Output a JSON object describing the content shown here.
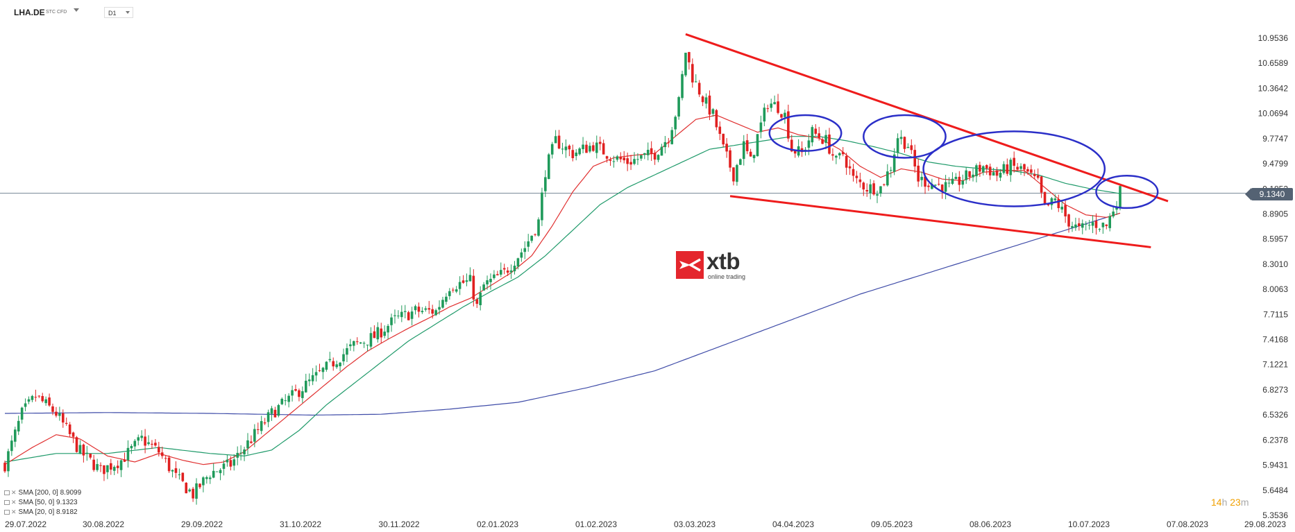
{
  "toolbar": {
    "symbol": "LHA.DE",
    "symbol_type": "STC CFD",
    "timeframe": "D1"
  },
  "price_tag": "9.1340",
  "countdown": {
    "h_val": "14",
    "h_unit": "h",
    "m_val": "23",
    "m_unit": "m"
  },
  "logo": {
    "text": "xtb",
    "subtitle": "online trading"
  },
  "legend": [
    {
      "label": "SMA [200, 0] 8.9099",
      "color": "#3f4ca8"
    },
    {
      "label": "SMA [50, 0] 9.1323",
      "color": "#1f9a6a"
    },
    {
      "label": "SMA [20, 0] 8.9182",
      "color": "#e02f2f"
    }
  ],
  "chart_data": {
    "type": "candlestick",
    "up_color": "#1f9a5a",
    "down_color": "#e02020",
    "ylim": [
      5.3536,
      11.15
    ],
    "y_ticks": [
      "10.9536",
      "10.6589",
      "10.3642",
      "10.0694",
      "9.7747",
      "9.4799",
      "9.1852",
      "8.8905",
      "8.5957",
      "8.3010",
      "8.0063",
      "7.7115",
      "7.4168",
      "7.1221",
      "6.8273",
      "6.5326",
      "6.2378",
      "5.9431",
      "5.6484",
      "5.3536"
    ],
    "x_ticks": [
      "29.07.2022",
      "30.08.2022",
      "29.09.2022",
      "31.10.2022",
      "30.11.2022",
      "02.01.2023",
      "01.02.2023",
      "03.03.2023",
      "04.04.2023",
      "09.05.2023",
      "08.06.2023",
      "10.07.2023",
      "07.08.2023",
      "29.08.2023"
    ],
    "current_price": 9.134,
    "anchors": [
      [
        0,
        5.95
      ],
      [
        5,
        6.55
      ],
      [
        9,
        6.75
      ],
      [
        15,
        6.55
      ],
      [
        22,
        6.1
      ],
      [
        28,
        5.88
      ],
      [
        34,
        6.0
      ],
      [
        40,
        6.25
      ],
      [
        45,
        6.1
      ],
      [
        50,
        5.8
      ],
      [
        55,
        5.6
      ],
      [
        60,
        5.85
      ],
      [
        66,
        5.95
      ],
      [
        72,
        6.25
      ],
      [
        78,
        6.55
      ],
      [
        84,
        6.75
      ],
      [
        90,
        6.95
      ],
      [
        96,
        7.15
      ],
      [
        102,
        7.35
      ],
      [
        108,
        7.45
      ],
      [
        114,
        7.65
      ],
      [
        120,
        7.75
      ],
      [
        126,
        7.75
      ],
      [
        130,
        8.05
      ],
      [
        136,
        8.1
      ],
      [
        138,
        7.8
      ],
      [
        140,
        8.05
      ],
      [
        146,
        8.2
      ],
      [
        152,
        8.5
      ],
      [
        156,
        8.8
      ],
      [
        158,
        9.4
      ],
      [
        161,
        9.75
      ],
      [
        166,
        9.6
      ],
      [
        172,
        9.7
      ],
      [
        178,
        9.55
      ],
      [
        182,
        9.5
      ],
      [
        186,
        9.55
      ],
      [
        190,
        9.6
      ],
      [
        194,
        9.8
      ],
      [
        197,
        10.2
      ],
      [
        199,
        10.8
      ],
      [
        201,
        10.5
      ],
      [
        204,
        10.25
      ],
      [
        207,
        10.05
      ],
      [
        210,
        9.65
      ],
      [
        213,
        9.35
      ],
      [
        216,
        9.7
      ],
      [
        218,
        9.5
      ],
      [
        220,
        9.8
      ],
      [
        223,
        10.2
      ],
      [
        226,
        10.15
      ],
      [
        228,
        10.05
      ],
      [
        230,
        9.65
      ],
      [
        233,
        9.6
      ],
      [
        236,
        9.85
      ],
      [
        240,
        9.75
      ],
      [
        243,
        9.5
      ],
      [
        245,
        9.6
      ],
      [
        248,
        9.3
      ],
      [
        252,
        9.2
      ],
      [
        256,
        9.2
      ],
      [
        259,
        9.45
      ],
      [
        261,
        9.8
      ],
      [
        264,
        9.7
      ],
      [
        267,
        9.3
      ],
      [
        271,
        9.25
      ],
      [
        276,
        9.2
      ],
      [
        282,
        9.35
      ],
      [
        286,
        9.45
      ],
      [
        290,
        9.35
      ],
      [
        294,
        9.45
      ],
      [
        298,
        9.4
      ],
      [
        302,
        9.25
      ],
      [
        304,
        8.95
      ],
      [
        307,
        9.05
      ],
      [
        311,
        8.8
      ],
      [
        314,
        8.7
      ],
      [
        318,
        8.78
      ],
      [
        322,
        8.75
      ],
      [
        324,
        8.95
      ],
      [
        326,
        9.15
      ]
    ],
    "sma20_path": [
      [
        0,
        5.95
      ],
      [
        8,
        6.15
      ],
      [
        15,
        6.3
      ],
      [
        22,
        6.25
      ],
      [
        30,
        6.05
      ],
      [
        38,
        5.98
      ],
      [
        45,
        6.08
      ],
      [
        52,
        6.0
      ],
      [
        58,
        5.95
      ],
      [
        64,
        5.98
      ],
      [
        70,
        6.1
      ],
      [
        76,
        6.3
      ],
      [
        82,
        6.5
      ],
      [
        88,
        6.7
      ],
      [
        94,
        6.9
      ],
      [
        100,
        7.1
      ],
      [
        106,
        7.28
      ],
      [
        112,
        7.42
      ],
      [
        118,
        7.55
      ],
      [
        124,
        7.67
      ],
      [
        130,
        7.8
      ],
      [
        136,
        7.9
      ],
      [
        142,
        8.05
      ],
      [
        148,
        8.2
      ],
      [
        154,
        8.4
      ],
      [
        160,
        8.75
      ],
      [
        166,
        9.15
      ],
      [
        172,
        9.45
      ],
      [
        178,
        9.55
      ],
      [
        184,
        9.58
      ],
      [
        190,
        9.6
      ],
      [
        196,
        9.8
      ],
      [
        202,
        10.0
      ],
      [
        208,
        10.05
      ],
      [
        214,
        9.95
      ],
      [
        220,
        9.85
      ],
      [
        226,
        9.9
      ],
      [
        232,
        9.82
      ],
      [
        238,
        9.78
      ],
      [
        244,
        9.65
      ],
      [
        250,
        9.45
      ],
      [
        256,
        9.32
      ],
      [
        262,
        9.42
      ],
      [
        268,
        9.38
      ],
      [
        274,
        9.3
      ],
      [
        280,
        9.28
      ],
      [
        286,
        9.38
      ],
      [
        292,
        9.4
      ],
      [
        298,
        9.4
      ],
      [
        304,
        9.2
      ],
      [
        310,
        9.0
      ],
      [
        316,
        8.88
      ],
      [
        322,
        8.85
      ],
      [
        326,
        8.9
      ]
    ],
    "sma50_path": [
      [
        0,
        5.98
      ],
      [
        15,
        6.08
      ],
      [
        30,
        6.08
      ],
      [
        45,
        6.15
      ],
      [
        60,
        6.08
      ],
      [
        70,
        6.05
      ],
      [
        78,
        6.12
      ],
      [
        86,
        6.35
      ],
      [
        94,
        6.65
      ],
      [
        102,
        6.9
      ],
      [
        110,
        7.15
      ],
      [
        118,
        7.4
      ],
      [
        126,
        7.6
      ],
      [
        134,
        7.8
      ],
      [
        142,
        7.98
      ],
      [
        150,
        8.15
      ],
      [
        158,
        8.4
      ],
      [
        166,
        8.7
      ],
      [
        174,
        9.0
      ],
      [
        182,
        9.2
      ],
      [
        190,
        9.35
      ],
      [
        198,
        9.5
      ],
      [
        206,
        9.65
      ],
      [
        214,
        9.7
      ],
      [
        222,
        9.75
      ],
      [
        230,
        9.8
      ],
      [
        238,
        9.8
      ],
      [
        246,
        9.75
      ],
      [
        254,
        9.68
      ],
      [
        262,
        9.6
      ],
      [
        270,
        9.5
      ],
      [
        278,
        9.45
      ],
      [
        286,
        9.42
      ],
      [
        294,
        9.4
      ],
      [
        302,
        9.35
      ],
      [
        310,
        9.25
      ],
      [
        318,
        9.18
      ],
      [
        326,
        9.13
      ]
    ],
    "sma200_path": [
      [
        0,
        6.55
      ],
      [
        30,
        6.56
      ],
      [
        60,
        6.55
      ],
      [
        90,
        6.53
      ],
      [
        110,
        6.54
      ],
      [
        130,
        6.6
      ],
      [
        150,
        6.68
      ],
      [
        170,
        6.85
      ],
      [
        190,
        7.05
      ],
      [
        210,
        7.35
      ],
      [
        230,
        7.65
      ],
      [
        250,
        7.95
      ],
      [
        270,
        8.2
      ],
      [
        290,
        8.45
      ],
      [
        310,
        8.7
      ],
      [
        326,
        8.9
      ]
    ],
    "annotations": {
      "upper_trendline": [
        [
          199,
          11.0
        ],
        [
          340,
          9.04
        ]
      ],
      "lower_trendline": [
        [
          212,
          9.1
        ],
        [
          335,
          8.5
        ]
      ],
      "circles": [
        {
          "cx": 234,
          "cy": 9.84,
          "rx": 10.5,
          "ry": 0.21
        },
        {
          "cx": 263,
          "cy": 9.8,
          "rx": 12,
          "ry": 0.25
        },
        {
          "cx": 295,
          "cy": 9.42,
          "rx": 26.5,
          "ry": 0.44
        },
        {
          "cx": 328,
          "cy": 9.15,
          "rx": 9,
          "ry": 0.19
        }
      ]
    }
  }
}
